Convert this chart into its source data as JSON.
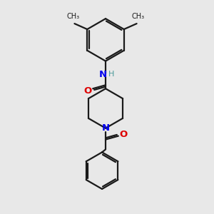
{
  "bg_color": "#e8e8e8",
  "bond_color": "#1a1a1a",
  "N_color": "#0000ee",
  "O_color": "#dd0000",
  "H_color": "#4a9999",
  "line_width": 1.6,
  "font_size": 9.5,
  "fig_size": [
    3.0,
    3.0
  ],
  "dpi": 100,
  "methyl_labels": [
    "CH₃",
    "CH₃"
  ],
  "atom_labels": {
    "N": "N",
    "O": "O",
    "H": "H"
  }
}
